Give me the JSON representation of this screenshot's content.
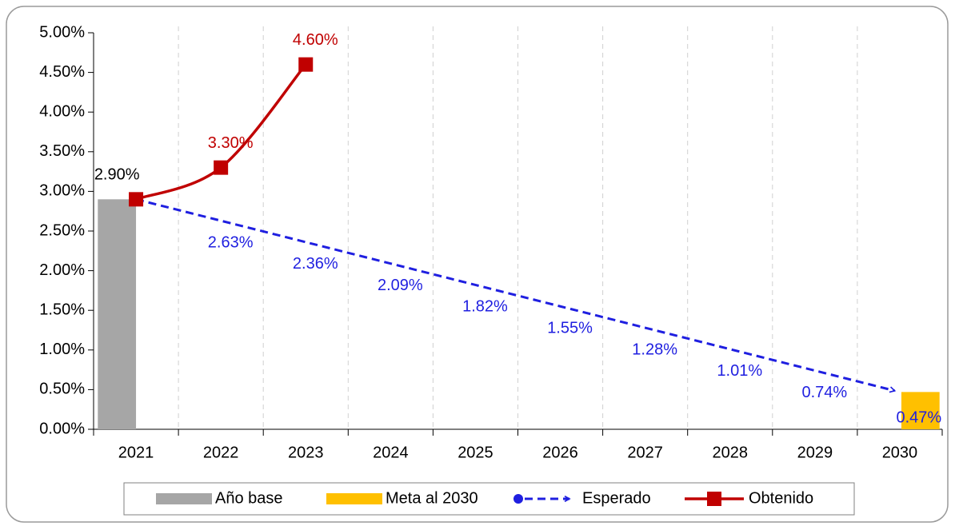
{
  "chart_data": {
    "type": "bar_line",
    "categories": [
      "2021",
      "2022",
      "2023",
      "2024",
      "2025",
      "2026",
      "2027",
      "2028",
      "2029",
      "2030"
    ],
    "series": [
      {
        "name": "Año base",
        "type": "bar",
        "color": "#a6a6a6",
        "label_color": "#000000",
        "values": [
          2.9,
          null,
          null,
          null,
          null,
          null,
          null,
          null,
          null,
          null
        ],
        "value_labels": [
          "2.90%",
          null,
          null,
          null,
          null,
          null,
          null,
          null,
          null,
          null
        ]
      },
      {
        "name": "Meta al 2030",
        "type": "bar",
        "color": "#ffc000",
        "label_color": "#1f1fe0",
        "values": [
          null,
          null,
          null,
          null,
          null,
          null,
          null,
          null,
          null,
          0.47
        ],
        "value_labels": [
          null,
          null,
          null,
          null,
          null,
          null,
          null,
          null,
          null,
          "0.47%"
        ]
      },
      {
        "name": "Esperado",
        "type": "line",
        "color": "#1f1fe0",
        "dashed": true,
        "label_color": "#1f1fe0",
        "values": [
          2.9,
          2.63,
          2.36,
          2.09,
          1.82,
          1.55,
          1.28,
          1.01,
          0.74,
          0.47
        ],
        "value_labels": [
          null,
          "2.63%",
          "2.36%",
          "2.09%",
          "1.82%",
          "1.55%",
          "1.28%",
          "1.01%",
          "0.74%",
          null
        ]
      },
      {
        "name": "Obtenido",
        "type": "line",
        "color": "#c00000",
        "smooth": true,
        "marker": "square",
        "label_color": "#c00000",
        "values": [
          2.9,
          3.3,
          4.6,
          null,
          null,
          null,
          null,
          null,
          null,
          null
        ],
        "value_labels": [
          null,
          "3.30%",
          "4.60%",
          null,
          null,
          null,
          null,
          null,
          null,
          null
        ]
      }
    ],
    "ylim": [
      0,
      5
    ],
    "yticks": [
      {
        "value": 0,
        "label": "0.00%"
      },
      {
        "value": 0.5,
        "label": "0.50%"
      },
      {
        "value": 1,
        "label": "1.00%"
      },
      {
        "value": 1.5,
        "label": "1.50%"
      },
      {
        "value": 2,
        "label": "2.00%"
      },
      {
        "value": 2.5,
        "label": "2.50%"
      },
      {
        "value": 3,
        "label": "3.00%"
      },
      {
        "value": 3.5,
        "label": "3.50%"
      },
      {
        "value": 4,
        "label": "4.00%"
      },
      {
        "value": 4.5,
        "label": "4.50%"
      },
      {
        "value": 5,
        "label": "5.00%"
      }
    ],
    "vertical_grid": true,
    "legend": "bottom"
  }
}
